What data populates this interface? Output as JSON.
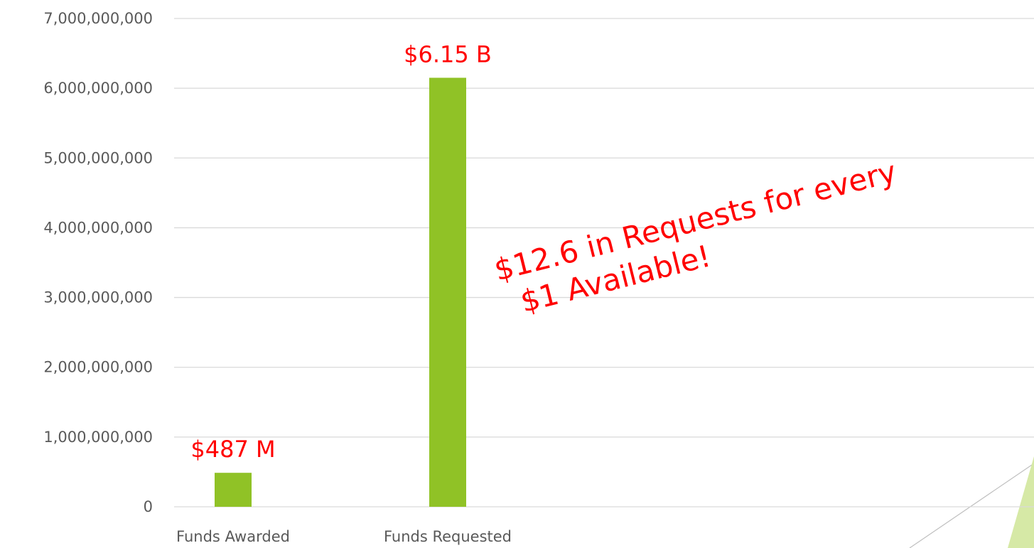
{
  "chart_data": {
    "type": "bar",
    "categories": [
      "Funds Awarded",
      "Funds Requested"
    ],
    "values": [
      487000000,
      6150000000
    ],
    "value_labels": [
      "$487 M",
      "$6.15 B"
    ],
    "color": "#90c226",
    "label_color": "#ff0000",
    "ylim": [
      0,
      7000000000
    ],
    "yticks": [
      0,
      {
        "value": 1000000000,
        "label": "1,000,000,000"
      },
      {
        "value": 2000000000,
        "label": "2,000,000,000"
      },
      {
        "value": 3000000000,
        "label": "3,000,000,000"
      },
      {
        "value": 4000000000,
        "label": "4,000,000,000"
      },
      {
        "value": 5000000000,
        "label": "5,000,000,000"
      },
      {
        "value": 6000000000,
        "label": "6,000,000,000"
      },
      {
        "value": 7000000000,
        "label": "7,000,000,000"
      }
    ],
    "grid": true,
    "annotation": [
      "$12.6 in Requests for every",
      "$1 Available!"
    ]
  }
}
